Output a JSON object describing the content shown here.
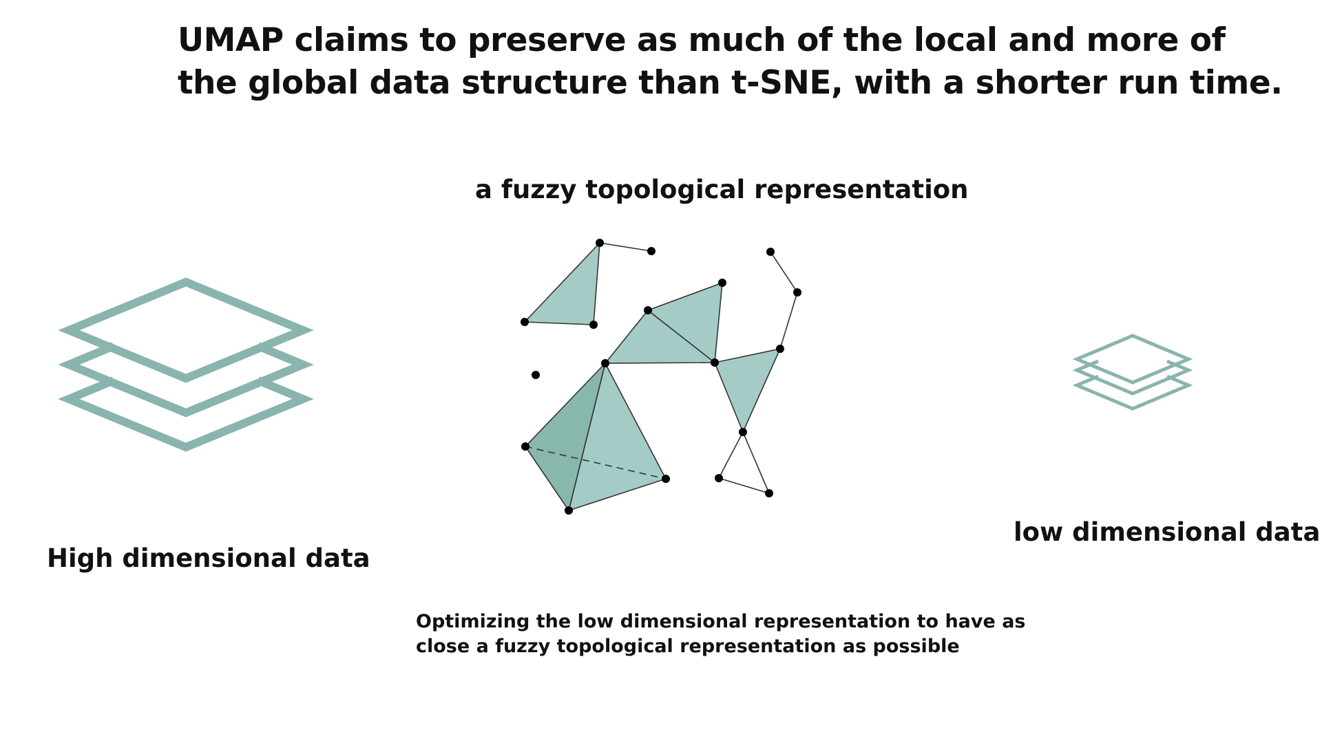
{
  "headline": {
    "line1": "UMAP claims to preserve as much of the local and more of",
    "line2": "the global data structure than t-SNE, with a shorter run time."
  },
  "labels": {
    "fuzzy": "a fuzzy topological representation",
    "high": "High dimensional data",
    "low": "low dimensional data"
  },
  "caption": {
    "line1": "Optimizing the low dimensional representation to have as",
    "line2": "close a fuzzy topological representation as possible"
  },
  "icons": {
    "high": "layers-icon",
    "low": "layers-icon",
    "graph": "simplicial-complex-graph"
  },
  "colors": {
    "layers": "#8ab4ae",
    "simplex_fill": "#a5cbc6",
    "simplex_fill_dark": "#88b8ad",
    "edge": "#333333",
    "node": "#000000"
  }
}
